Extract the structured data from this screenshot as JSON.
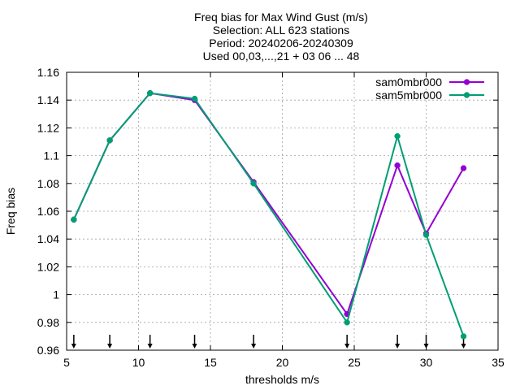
{
  "chart_data": {
    "type": "line",
    "title_lines": [
      "Freq bias  for Max Wind Gust (m/s)",
      "Selection: ALL    623 stations",
      "Period: 20240206-20240309",
      "Used 00,03,...,21 + 03 06 ... 48"
    ],
    "xlabel": "thresholds m/s",
    "ylabel": "Freq bias",
    "xlim": [
      5,
      35
    ],
    "ylim": [
      0.96,
      1.16
    ],
    "xticks": [
      5,
      10,
      15,
      20,
      25,
      30,
      35
    ],
    "xtick_labels": [
      "5",
      "10",
      "15",
      "20",
      "25",
      "30",
      "35"
    ],
    "yticks": [
      0.96,
      0.98,
      1.0,
      1.02,
      1.04,
      1.06,
      1.08,
      1.1,
      1.12,
      1.14,
      1.16
    ],
    "ytick_labels": [
      "0.96",
      "0.98",
      "1",
      "1.02",
      "1.04",
      "1.06",
      "1.08",
      "1.1",
      "1.12",
      "1.14",
      "1.16"
    ],
    "grid": true,
    "legend_position": "top-right",
    "threshold_markers": [
      5.5,
      8.0,
      10.8,
      13.9,
      18.0,
      24.5,
      28.0,
      30.0,
      32.6
    ],
    "series": [
      {
        "name": "sam0mbr000",
        "color": "#9400d3",
        "x": [
          5.5,
          8.0,
          10.8,
          13.9,
          18.0,
          24.5,
          28.0,
          30.0,
          32.6
        ],
        "y": [
          1.054,
          1.111,
          1.145,
          1.14,
          1.081,
          0.986,
          1.093,
          1.044,
          1.091
        ]
      },
      {
        "name": "sam5mbr000",
        "color": "#009e73",
        "x": [
          5.5,
          8.0,
          10.8,
          13.9,
          18.0,
          24.5,
          28.0,
          30.0,
          32.6
        ],
        "y": [
          1.054,
          1.111,
          1.145,
          1.141,
          1.08,
          0.98,
          1.114,
          1.043,
          0.97
        ]
      }
    ]
  }
}
